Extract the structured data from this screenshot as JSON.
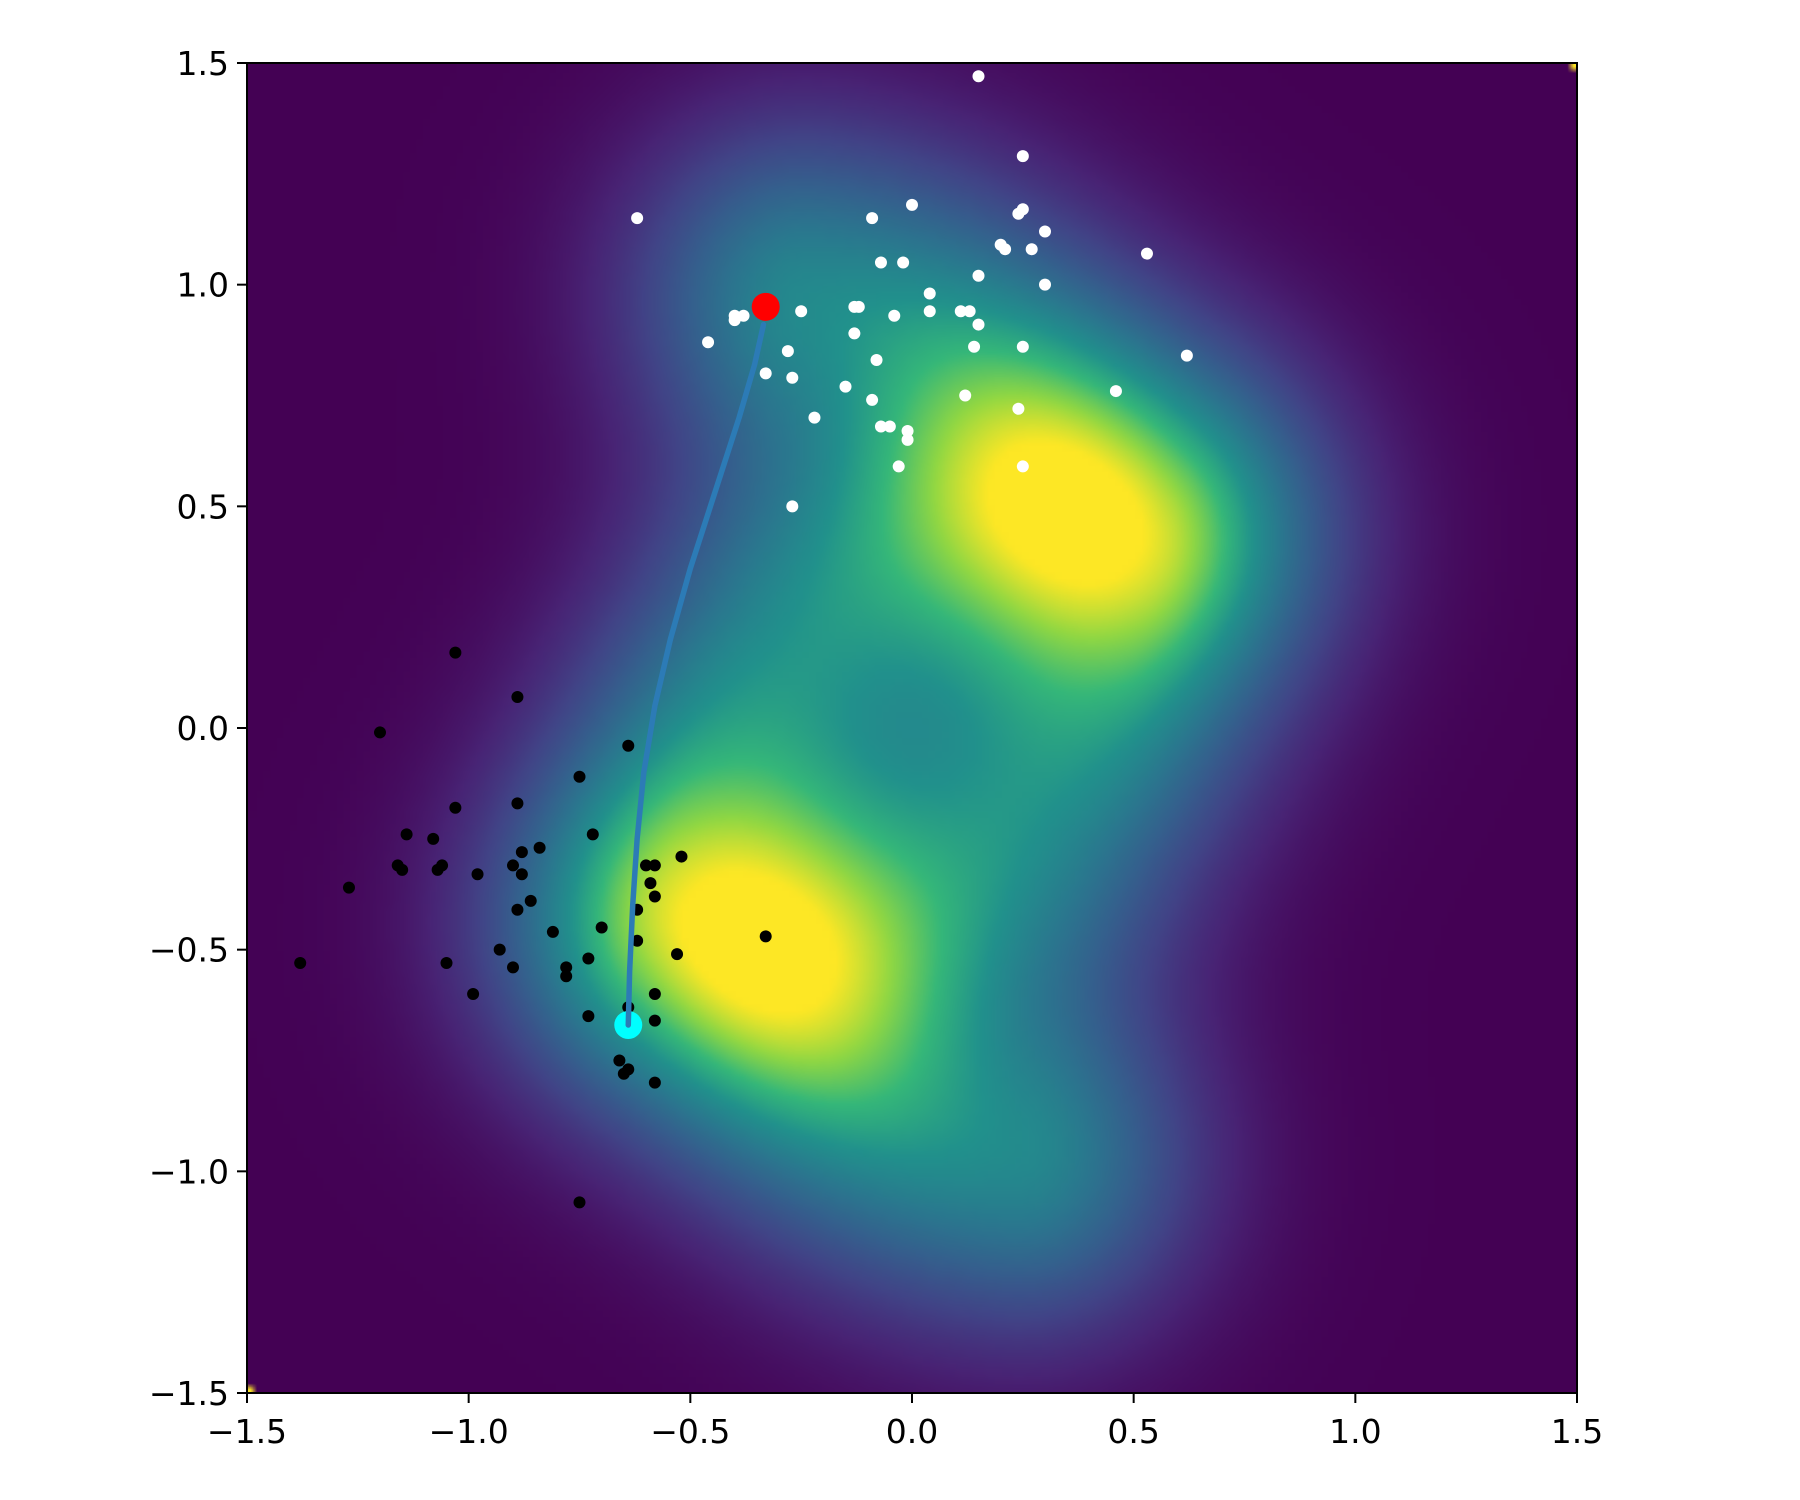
{
  "chart_data": {
    "type": "scatter",
    "title": "",
    "xlabel": "",
    "ylabel": "",
    "xlim": [
      -1.5,
      1.5
    ],
    "ylim": [
      -1.5,
      1.5
    ],
    "grid": false,
    "legend": "none",
    "xticks": [
      {
        "value": -1.5,
        "label": "−1.5"
      },
      {
        "value": -1.0,
        "label": "−1.0"
      },
      {
        "value": -0.5,
        "label": "−0.5"
      },
      {
        "value": 0.0,
        "label": "0.0"
      },
      {
        "value": 0.5,
        "label": "0.5"
      },
      {
        "value": 1.0,
        "label": "1.0"
      },
      {
        "value": 1.5,
        "label": "1.5"
      }
    ],
    "yticks": [
      {
        "value": 1.5,
        "label": "1.5"
      },
      {
        "value": 1.0,
        "label": "1.0"
      },
      {
        "value": 0.5,
        "label": "0.5"
      },
      {
        "value": 0.0,
        "label": "0.0"
      },
      {
        "value": -0.5,
        "label": "−0.5"
      },
      {
        "value": -1.0,
        "label": "−1.0"
      },
      {
        "value": -1.5,
        "label": "−1.5"
      }
    ],
    "background": {
      "type": "heatmap",
      "colormap": "viridis",
      "description_of_field": "two crescent-shaped density modes",
      "ridges": [
        {
          "center": [
            0.35,
            -0.25
          ],
          "radius": 0.75,
          "from_deg": 72,
          "to_deg": 262
        },
        {
          "center": [
            -0.35,
            0.25
          ],
          "radius": 0.75,
          "from_deg": 252,
          "to_deg": 442
        }
      ]
    },
    "series": [
      {
        "color": "#000000",
        "marker": "circle",
        "points": [
          [
            -1.03,
            0.17
          ],
          [
            -0.89,
            0.07
          ],
          [
            -1.2,
            -0.01
          ],
          [
            -0.64,
            -0.04
          ],
          [
            -0.75,
            -0.11
          ],
          [
            -0.89,
            -0.17
          ],
          [
            -1.03,
            -0.18
          ],
          [
            -0.72,
            -0.24
          ],
          [
            -1.14,
            -0.24
          ],
          [
            -1.08,
            -0.25
          ],
          [
            -0.84,
            -0.27
          ],
          [
            -0.88,
            -0.28
          ],
          [
            -1.16,
            -0.31
          ],
          [
            -0.9,
            -0.31
          ],
          [
            -1.06,
            -0.31
          ],
          [
            -1.15,
            -0.32
          ],
          [
            -1.07,
            -0.32
          ],
          [
            -0.52,
            -0.29
          ],
          [
            -0.58,
            -0.31
          ],
          [
            -0.6,
            -0.31
          ],
          [
            -0.98,
            -0.33
          ],
          [
            -0.88,
            -0.33
          ],
          [
            -0.59,
            -0.35
          ],
          [
            -1.27,
            -0.36
          ],
          [
            -0.58,
            -0.38
          ],
          [
            -0.86,
            -0.39
          ],
          [
            -0.89,
            -0.41
          ],
          [
            -0.62,
            -0.41
          ],
          [
            -0.7,
            -0.45
          ],
          [
            -0.81,
            -0.46
          ],
          [
            -0.33,
            -0.47
          ],
          [
            -0.62,
            -0.48
          ],
          [
            -0.93,
            -0.5
          ],
          [
            -0.53,
            -0.51
          ],
          [
            -0.73,
            -0.52
          ],
          [
            -1.05,
            -0.53
          ],
          [
            -1.38,
            -0.53
          ],
          [
            -0.78,
            -0.54
          ],
          [
            -0.9,
            -0.54
          ],
          [
            -0.78,
            -0.56
          ],
          [
            -0.99,
            -0.6
          ],
          [
            -0.58,
            -0.6
          ],
          [
            -0.64,
            -0.63
          ],
          [
            -0.73,
            -0.65
          ],
          [
            -0.58,
            -0.66
          ],
          [
            -0.66,
            -0.75
          ],
          [
            -0.64,
            -0.77
          ],
          [
            -0.65,
            -0.78
          ],
          [
            -0.58,
            -0.8
          ],
          [
            -0.75,
            -1.07
          ]
        ]
      },
      {
        "color": "#ffffff",
        "marker": "circle",
        "points": [
          [
            0.15,
            1.47
          ],
          [
            0.25,
            1.29
          ],
          [
            0.0,
            1.18
          ],
          [
            -0.62,
            1.15
          ],
          [
            -0.09,
            1.15
          ],
          [
            0.24,
            1.16
          ],
          [
            0.25,
            1.17
          ],
          [
            0.3,
            1.12
          ],
          [
            0.2,
            1.09
          ],
          [
            0.21,
            1.08
          ],
          [
            0.27,
            1.08
          ],
          [
            0.53,
            1.07
          ],
          [
            -0.07,
            1.05
          ],
          [
            -0.02,
            1.05
          ],
          [
            0.15,
            1.02
          ],
          [
            0.3,
            1.0
          ],
          [
            0.04,
            0.98
          ],
          [
            -0.13,
            0.95
          ],
          [
            -0.12,
            0.95
          ],
          [
            -0.25,
            0.94
          ],
          [
            0.04,
            0.94
          ],
          [
            0.11,
            0.94
          ],
          [
            0.13,
            0.94
          ],
          [
            -0.4,
            0.93
          ],
          [
            -0.38,
            0.93
          ],
          [
            -0.04,
            0.93
          ],
          [
            -0.4,
            0.92
          ],
          [
            0.15,
            0.91
          ],
          [
            -0.13,
            0.89
          ],
          [
            -0.46,
            0.87
          ],
          [
            0.14,
            0.86
          ],
          [
            0.25,
            0.86
          ],
          [
            -0.28,
            0.85
          ],
          [
            0.62,
            0.84
          ],
          [
            -0.08,
            0.83
          ],
          [
            -0.33,
            0.8
          ],
          [
            -0.27,
            0.79
          ],
          [
            -0.15,
            0.77
          ],
          [
            0.46,
            0.76
          ],
          [
            0.12,
            0.75
          ],
          [
            -0.09,
            0.74
          ],
          [
            0.24,
            0.72
          ],
          [
            -0.22,
            0.7
          ],
          [
            -0.07,
            0.68
          ],
          [
            -0.05,
            0.68
          ],
          [
            -0.01,
            0.67
          ],
          [
            -0.01,
            0.65
          ],
          [
            -0.03,
            0.59
          ],
          [
            0.25,
            0.59
          ],
          [
            -0.27,
            0.5
          ]
        ]
      }
    ],
    "path": {
      "color": "#2c7bb6",
      "points": [
        [
          -0.64,
          -0.67
        ],
        [
          -0.637,
          -0.55
        ],
        [
          -0.63,
          -0.4
        ],
        [
          -0.62,
          -0.25
        ],
        [
          -0.605,
          -0.1
        ],
        [
          -0.58,
          0.05
        ],
        [
          -0.545,
          0.2
        ],
        [
          -0.5,
          0.36
        ],
        [
          -0.445,
          0.53
        ],
        [
          -0.39,
          0.7
        ],
        [
          -0.355,
          0.82
        ],
        [
          -0.335,
          0.91
        ]
      ],
      "start": {
        "point": [
          -0.64,
          -0.67
        ],
        "color": "#00ffff"
      },
      "end": {
        "point": [
          -0.33,
          0.95
        ],
        "color": "#ff0000"
      }
    }
  }
}
